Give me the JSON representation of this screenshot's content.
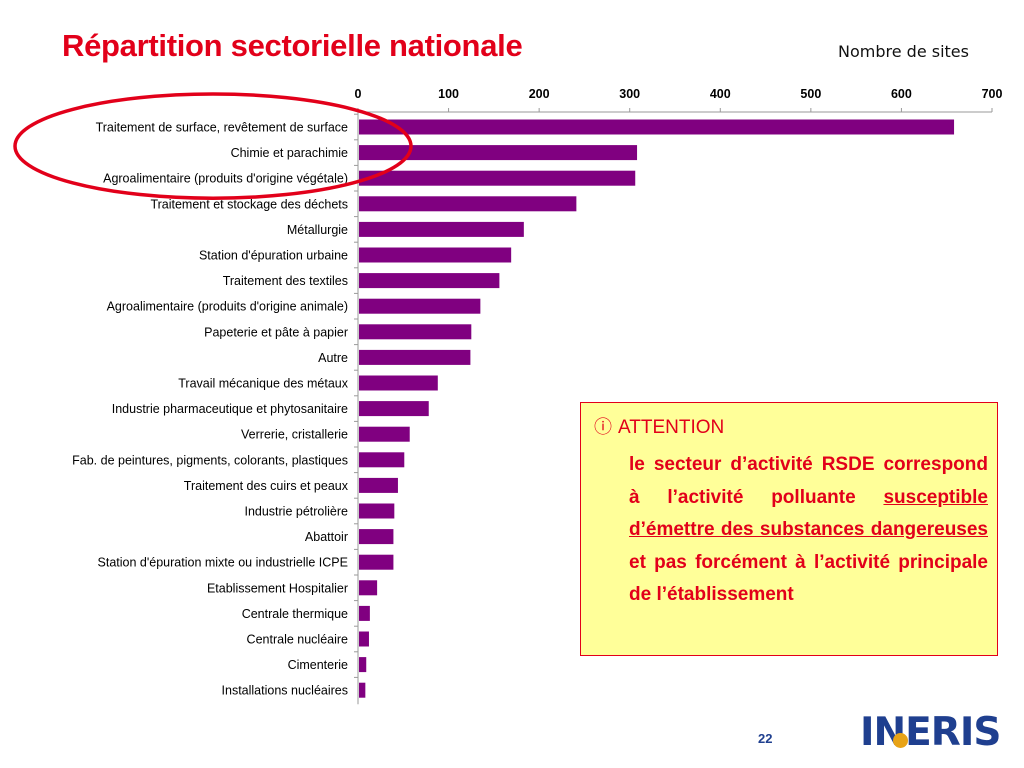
{
  "page": {
    "title": "Répartition sectorielle nationale",
    "page_number": "22"
  },
  "logo": {
    "text": "INERIS"
  },
  "callout": {
    "icon": "info-circle-icon",
    "heading": "ATTENTION",
    "text_before": "le secteur d’activité RSDE correspond à l’activité polluante ",
    "text_underlined": "susceptible d’émettre des substances dangereuses",
    "text_after": " et pas forcément à l’activité principale de l’établissement"
  },
  "colors": {
    "title": "#e2001a",
    "bar": "#800080",
    "callout_bg": "#ffff99",
    "callout_text": "#e2001a",
    "logo": "#1f3f8f",
    "highlight_ellipse": "#e2001a"
  },
  "chart_data": {
    "type": "bar",
    "orientation": "horizontal",
    "xlabel": "Nombre de sites",
    "xlim": [
      0,
      700
    ],
    "xticks": [
      0,
      100,
      200,
      300,
      400,
      500,
      600,
      700
    ],
    "axis_position": "top",
    "grid": false,
    "categories": [
      "Traitement de surface, revêtement de surface",
      "Chimie et parachimie",
      "Agroalimentaire (produits d'origine végétale)",
      "Traitement et stockage des déchets",
      "Métallurgie",
      "Station d'épuration urbaine",
      "Traitement des textiles",
      "Agroalimentaire (produits d'origine animale)",
      "Papeterie et pâte à papier",
      "Autre",
      "Travail mécanique des métaux",
      "Industrie pharmaceutique et phytosanitaire",
      "Verrerie, cristallerie",
      "Fab. de peintures, pigments, colorants, plastiques",
      "Traitement des cuirs et peaux",
      "Industrie pétrolière",
      "Abattoir",
      "Station d'épuration mixte ou industrielle ICPE",
      "Etablissement Hospitalier",
      "Centrale thermique",
      "Centrale nucléaire",
      "Cimenterie",
      "Installations nucléaires"
    ],
    "values": [
      657,
      307,
      305,
      240,
      182,
      168,
      155,
      134,
      124,
      123,
      87,
      77,
      56,
      50,
      43,
      39,
      38,
      38,
      20,
      12,
      11,
      8,
      7
    ],
    "highlighted_categories": [
      0,
      1,
      2
    ]
  }
}
